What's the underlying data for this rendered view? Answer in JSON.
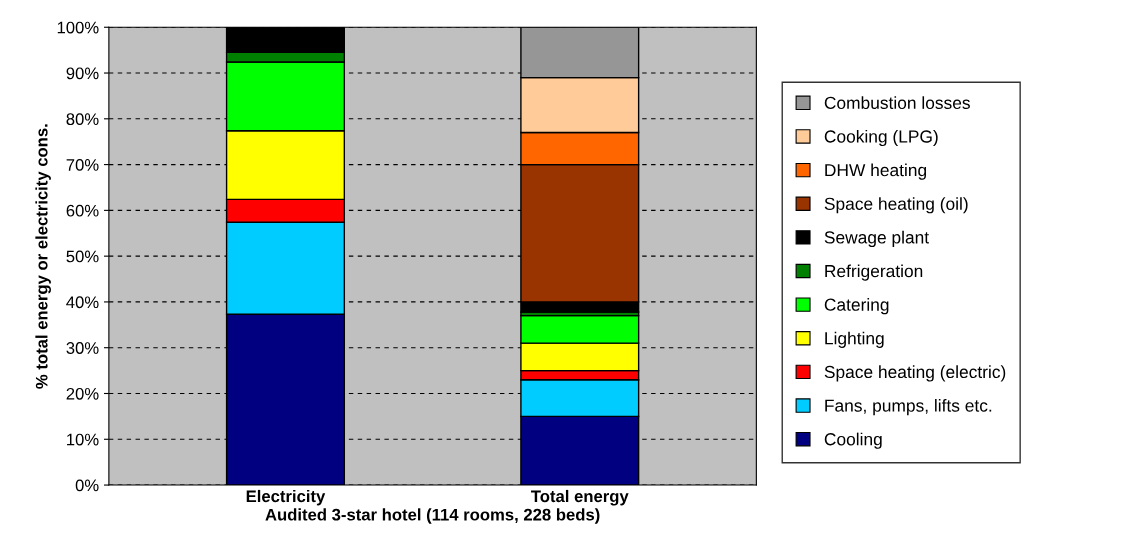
{
  "chart_data": {
    "type": "bar",
    "stacked": true,
    "xlabel": "Audited 3-star hotel (114 rooms, 228 beds)",
    "ylabel": "% total energy or electricity cons.",
    "categories": [
      "Electricity",
      "Total energy"
    ],
    "series": [
      {
        "name": "Cooling",
        "color": "#000080",
        "values": [
          37.3,
          15
        ]
      },
      {
        "name": "Fans, pumps, lifts etc.",
        "color": "#00ccff",
        "values": [
          20.1,
          8
        ]
      },
      {
        "name": "Space heating (electric)",
        "color": "#ff0000",
        "values": [
          5,
          2
        ]
      },
      {
        "name": "Lighting",
        "color": "#ffff00",
        "values": [
          15,
          6
        ]
      },
      {
        "name": "Catering",
        "color": "#00ff00",
        "values": [
          15,
          6
        ]
      },
      {
        "name": "Refrigeration",
        "color": "#008000",
        "values": [
          2.1,
          0.8
        ]
      },
      {
        "name": "Sewage plant",
        "color": "#000000",
        "values": [
          5.5,
          2.2
        ]
      },
      {
        "name": "Space heating (oil)",
        "color": "#993300",
        "values": [
          null,
          30
        ]
      },
      {
        "name": "DHW heating",
        "color": "#ff6600",
        "values": [
          null,
          7
        ]
      },
      {
        "name": "Cooking (LPG)",
        "color": "#ffcc99",
        "values": [
          null,
          12
        ]
      },
      {
        "name": "Combustion losses",
        "color": "#969696",
        "values": [
          null,
          11
        ]
      }
    ],
    "ylim": [
      0,
      100
    ],
    "yticks": [
      {
        "value": 0,
        "label": "0%"
      },
      {
        "value": 10,
        "label": "10%"
      },
      {
        "value": 20,
        "label": "20%"
      },
      {
        "value": 30,
        "label": "30%"
      },
      {
        "value": 40,
        "label": "40%"
      },
      {
        "value": 50,
        "label": "50%"
      },
      {
        "value": 60,
        "label": "60%"
      },
      {
        "value": 70,
        "label": "70%"
      },
      {
        "value": 80,
        "label": "80%"
      },
      {
        "value": 90,
        "label": "90%"
      },
      {
        "value": 100,
        "label": "100%"
      }
    ],
    "grid": "y",
    "legend": "right"
  }
}
